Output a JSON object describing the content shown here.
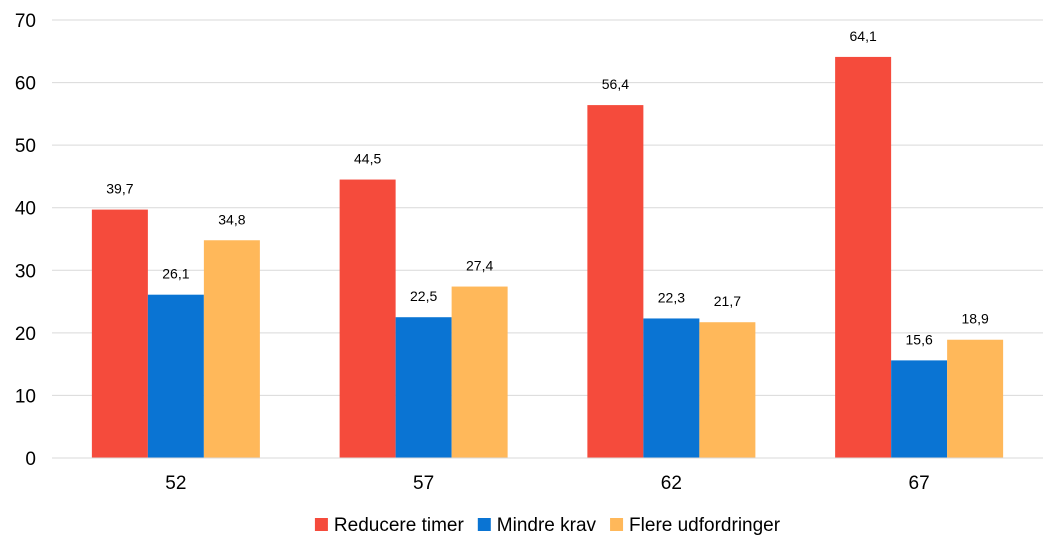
{
  "chart_data": {
    "type": "bar",
    "title": "",
    "xlabel": "",
    "ylabel": "",
    "categories": [
      "52",
      "57",
      "62",
      "67"
    ],
    "ylim": [
      0,
      70
    ],
    "yticks": [
      "0",
      "10",
      "20",
      "30",
      "40",
      "50",
      "60",
      "70"
    ],
    "grid": true,
    "legend_position": "bottom",
    "series": [
      {
        "name": "Reducere timer",
        "color": "#F54B3C",
        "values": [
          39.7,
          44.5,
          56.4,
          64.1
        ],
        "labels": [
          "39,7",
          "44,5",
          "56,4",
          "64,1"
        ]
      },
      {
        "name": "Mindre krav",
        "color": "#0A74D3",
        "values": [
          26.1,
          22.5,
          22.3,
          15.6
        ],
        "labels": [
          "26,1",
          "22,5",
          "22,3",
          "15,6"
        ]
      },
      {
        "name": "Flere udfordringer",
        "color": "#FFB85A",
        "values": [
          34.8,
          27.4,
          21.7,
          18.9
        ],
        "labels": [
          "34,8",
          "27,4",
          "21,7",
          "18,9"
        ]
      }
    ]
  }
}
